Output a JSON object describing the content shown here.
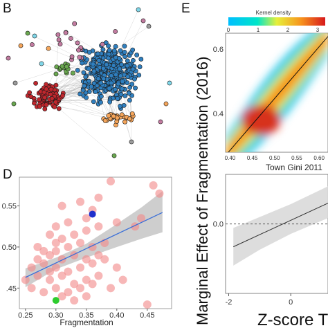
{
  "panels": {
    "B": {
      "letter": "B"
    },
    "D": {
      "letter": "D"
    },
    "E": {
      "letter": "E"
    }
  },
  "colors": {
    "network_blue": "#2f7fbf",
    "network_red": "#c0272d",
    "network_orange": "#f5a55a",
    "scatter_pink": "#f28b8b",
    "highlight_blue": "#1f2fcc",
    "highlight_green": "#2ecc2e",
    "fit_line": "#3a6fd8",
    "ci_band": "#bdbdbd"
  },
  "chart_data": [
    {
      "type": "network",
      "panel": "B",
      "communities": [
        {
          "color": "#2f7fbf",
          "size": "large"
        },
        {
          "color": "#c0272d",
          "size": "medium"
        },
        {
          "color": "#f5a55a",
          "size": "small"
        },
        {
          "color": "#6aa84f",
          "size": "small"
        },
        {
          "color": "#c27ba0",
          "size": "small"
        }
      ]
    },
    {
      "type": "scatter",
      "panel": "D",
      "xlabel": "Fragmentation",
      "ylabel": "",
      "xlim": [
        0.24,
        0.49
      ],
      "ylim": [
        0.425,
        0.585
      ],
      "x_ticks": [
        "0.25",
        "0.30",
        "0.35",
        "0.40",
        "0.45"
      ],
      "y_ticks": [
        ".45",
        "0.50",
        "0.55"
      ],
      "points": [
        [
          0.31,
          0.55
        ],
        [
          0.34,
          0.555
        ],
        [
          0.39,
          0.58
        ],
        [
          0.37,
          0.56
        ],
        [
          0.36,
          0.545
        ],
        [
          0.46,
          0.575
        ],
        [
          0.47,
          0.565
        ],
        [
          0.35,
          0.535
        ],
        [
          0.32,
          0.53
        ],
        [
          0.3,
          0.525
        ],
        [
          0.29,
          0.515
        ],
        [
          0.31,
          0.51
        ],
        [
          0.33,
          0.515
        ],
        [
          0.35,
          0.52
        ],
        [
          0.37,
          0.525
        ],
        [
          0.4,
          0.53
        ],
        [
          0.44,
          0.535
        ],
        [
          0.43,
          0.525
        ],
        [
          0.27,
          0.5
        ],
        [
          0.28,
          0.495
        ],
        [
          0.3,
          0.505
        ],
        [
          0.32,
          0.5
        ],
        [
          0.34,
          0.505
        ],
        [
          0.36,
          0.5
        ],
        [
          0.38,
          0.505
        ],
        [
          0.29,
          0.49
        ],
        [
          0.31,
          0.485
        ],
        [
          0.33,
          0.49
        ],
        [
          0.35,
          0.485
        ],
        [
          0.37,
          0.49
        ],
        [
          0.26,
          0.475
        ],
        [
          0.28,
          0.48
        ],
        [
          0.3,
          0.475
        ],
        [
          0.32,
          0.47
        ],
        [
          0.34,
          0.475
        ],
        [
          0.36,
          0.48
        ],
        [
          0.38,
          0.485
        ],
        [
          0.4,
          0.475
        ],
        [
          0.25,
          0.46
        ],
        [
          0.27,
          0.465
        ],
        [
          0.29,
          0.46
        ],
        [
          0.31,
          0.465
        ],
        [
          0.33,
          0.455
        ],
        [
          0.35,
          0.46
        ],
        [
          0.37,
          0.465
        ],
        [
          0.26,
          0.45
        ],
        [
          0.28,
          0.445
        ],
        [
          0.3,
          0.45
        ],
        [
          0.32,
          0.445
        ],
        [
          0.34,
          0.45
        ],
        [
          0.36,
          0.455
        ],
        [
          0.31,
          0.44
        ],
        [
          0.33,
          0.435
        ],
        [
          0.39,
          0.45
        ],
        [
          0.41,
          0.46
        ],
        [
          0.3,
          0.495
        ],
        [
          0.27,
          0.485
        ],
        [
          0.45,
          0.43
        ],
        [
          0.29,
          0.47
        ],
        [
          0.35,
          0.44
        ]
      ],
      "highlight_blue": [
        0.36,
        0.54
      ],
      "highlight_green": [
        0.3,
        0.435
      ],
      "fit": {
        "x": [
          0.25,
          0.475
        ],
        "y": [
          0.463,
          0.542
        ]
      },
      "ci_upper": [
        [
          0.25,
          0.474
        ],
        [
          0.3,
          0.487
        ],
        [
          0.35,
          0.504
        ],
        [
          0.4,
          0.528
        ],
        [
          0.44,
          0.548
        ],
        [
          0.475,
          0.568
        ]
      ],
      "ci_lower": [
        [
          0.25,
          0.451
        ],
        [
          0.3,
          0.473
        ],
        [
          0.35,
          0.487
        ],
        [
          0.4,
          0.5
        ],
        [
          0.44,
          0.51
        ],
        [
          0.475,
          0.518
        ]
      ]
    },
    {
      "type": "heatmap",
      "panel": "E-top",
      "title": "Kernel density",
      "colorbar_ticks": [
        "0",
        "1",
        "2",
        "3"
      ],
      "xlabel": "Town Gini 2011",
      "x_ticks": [
        "0.40",
        "0.45",
        "0.50",
        "0.55",
        "0.60"
      ],
      "y_ticks": [
        "0.4",
        "0.6"
      ],
      "xlim": [
        0.39,
        0.62
      ],
      "ylim": [
        0.28,
        0.65
      ],
      "fit": {
        "x": [
          0.39,
          0.62
        ],
        "y": [
          0.27,
          0.64
        ]
      }
    },
    {
      "type": "line",
      "panel": "E-bottom",
      "ylabel": "Marginal Effect of Fragmentation (2016)",
      "xlabel": "Z-score T",
      "x_ticks": [
        "-2",
        "0"
      ],
      "y_ticks": [
        "0.0"
      ],
      "xlim": [
        -2.1,
        1.2
      ],
      "ylim": [
        -0.35,
        0.25
      ],
      "line": {
        "x": [
          -1.85,
          1.2
        ],
        "y": [
          -0.115,
          0.105
        ]
      },
      "band_upper": [
        [
          -1.85,
          -0.02
        ],
        [
          -1.0,
          0.035
        ],
        [
          0,
          0.1
        ],
        [
          1.2,
          0.19
        ]
      ],
      "band_lower": [
        [
          -1.85,
          -0.21
        ],
        [
          -1.0,
          -0.13
        ],
        [
          0,
          -0.05
        ],
        [
          1.2,
          0.03
        ]
      ],
      "reference_line": 0.0
    }
  ]
}
